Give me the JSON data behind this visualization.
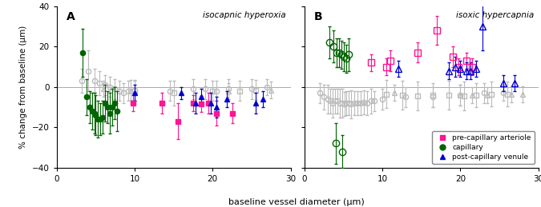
{
  "title_A": "isocapnic hyperoxia",
  "title_B": "isoxic hypercapnia",
  "xlabel": "baseline vessel diameter (μm)",
  "ylabel": "% change from baseline (μm)",
  "label_A": "A",
  "label_B": "B",
  "ylim": [
    -40,
    40
  ],
  "xlim": [
    0,
    30
  ],
  "yticks": [
    -40,
    -20,
    0,
    20,
    40
  ],
  "xticks": [
    0,
    10,
    20,
    30
  ],
  "colors": {
    "arteriole": "#FF1493",
    "capillary": "#006400",
    "venule": "#0000CD",
    "ghost": "#BBBBBB"
  },
  "A_ghost_circles": {
    "x": [
      3.2,
      4.0,
      4.8,
      5.5,
      6.2,
      6.8,
      7.4,
      8.0,
      8.6,
      9.2,
      10.0,
      14.5,
      17.5,
      19.0,
      20.5,
      22.0,
      25.0,
      27.0
    ],
    "y": [
      3.0,
      8.0,
      3.0,
      2.0,
      1.0,
      0.0,
      -1.0,
      -2.0,
      -3.0,
      -2.0,
      -1.5,
      -2.0,
      -1.0,
      -1.0,
      -2.0,
      -1.0,
      -1.0,
      0.0
    ],
    "yerr": [
      6,
      10,
      6,
      6,
      5,
      5,
      5,
      5,
      5,
      5,
      5,
      5,
      5,
      5,
      5,
      5,
      5,
      4
    ]
  },
  "A_ghost_triangles": {
    "x": [
      6.0,
      9.5,
      22.0,
      27.5
    ],
    "y": [
      -1.0,
      -1.5,
      -2.0,
      -1.5
    ],
    "yerr": [
      4,
      5,
      4,
      4
    ]
  },
  "A_ghost_squares": {
    "x": [
      10.0,
      15.0,
      20.0,
      23.5,
      25.5
    ],
    "y": [
      -2.0,
      -3.0,
      -2.0,
      -2.0,
      -1.5
    ],
    "yerr": [
      5,
      6,
      5,
      5,
      5
    ]
  },
  "A_cap": {
    "x": [
      3.3,
      3.8,
      4.2,
      4.5,
      4.8,
      5.0,
      5.3,
      5.6,
      5.9,
      6.2,
      6.5,
      6.8,
      7.1,
      7.4,
      7.7
    ],
    "y": [
      17.0,
      -5.0,
      -10.0,
      -12.0,
      -13.0,
      -14.0,
      -16.0,
      -16.0,
      -15.0,
      -8.0,
      -10.0,
      -13.0,
      -10.0,
      -8.0,
      -12.0
    ],
    "yerr": [
      12,
      9,
      8,
      9,
      10,
      10,
      9,
      8,
      8,
      9,
      8,
      10,
      9,
      8,
      10
    ]
  },
  "A_art": {
    "x": [
      9.8,
      13.5,
      15.5,
      17.5,
      18.5,
      19.5,
      20.5,
      22.5
    ],
    "y": [
      -8.0,
      -8.0,
      -17.0,
      -8.0,
      -8.5,
      -8.0,
      -13.0,
      -13.0
    ],
    "yerr": [
      4,
      5,
      9,
      4,
      4,
      5,
      6,
      5
    ]
  },
  "A_ven": {
    "x": [
      10.0,
      16.0,
      17.8,
      18.5,
      19.8,
      20.5,
      21.8,
      25.5,
      26.5
    ],
    "y": [
      -3.0,
      -3.0,
      -8.0,
      -5.0,
      -8.0,
      -10.0,
      -6.0,
      -8.0,
      -6.0
    ],
    "yerr": [
      4,
      3,
      5,
      4,
      5,
      5,
      4,
      5,
      4
    ]
  },
  "B_ghost_circles": {
    "x": [
      2.0,
      2.5,
      3.0,
      3.3,
      3.6,
      3.9,
      4.2,
      4.5,
      4.8,
      5.1,
      5.4,
      5.7,
      6.0,
      6.4,
      6.8,
      7.2,
      7.6,
      8.0,
      8.5,
      9.0,
      10.0,
      13.0,
      16.5,
      20.0,
      23.0,
      25.5
    ],
    "y": [
      -3.0,
      -5.0,
      -6.0,
      -7.0,
      -8.0,
      -7.0,
      -7.0,
      -8.0,
      -8.0,
      -8.5,
      -8.0,
      -8.0,
      -8.5,
      -8.0,
      -8.0,
      -8.0,
      -7.5,
      -8.0,
      -7.0,
      -7.0,
      -6.0,
      -5.0,
      -5.0,
      -4.0,
      -3.0,
      -3.0
    ],
    "yerr": [
      5,
      6,
      7,
      6,
      7,
      6,
      6,
      7,
      7,
      6,
      6,
      6,
      7,
      6,
      6,
      6,
      6,
      6,
      6,
      5,
      5,
      5,
      5,
      5,
      5,
      4
    ]
  },
  "B_ghost_triangles": {
    "x": [
      11.5,
      20.0,
      21.5,
      23.5,
      26.5,
      28.0
    ],
    "y": [
      -3.0,
      -4.0,
      -4.0,
      -4.0,
      -3.5,
      -3.5
    ],
    "yerr": [
      4,
      5,
      4,
      4,
      4,
      4
    ]
  },
  "B_ghost_squares": {
    "x": [
      10.5,
      12.5,
      14.5,
      16.5,
      18.5,
      20.5,
      22.0,
      24.0,
      26.0
    ],
    "y": [
      -3.5,
      -4.0,
      -4.5,
      -4.0,
      -4.0,
      -4.5,
      -4.0,
      -3.5,
      -3.5
    ],
    "yerr": [
      7,
      7,
      7,
      6,
      7,
      7,
      6,
      6,
      6
    ]
  },
  "B_cap": {
    "x": [
      3.2,
      3.7,
      4.1,
      4.4,
      4.7,
      5.0,
      5.3,
      5.7,
      4.0,
      4.8
    ],
    "y": [
      22.0,
      20.0,
      17.0,
      17.0,
      16.0,
      15.0,
      14.0,
      16.0,
      -28.0,
      -32.0
    ],
    "yerr": [
      8,
      8,
      7,
      7,
      7,
      7,
      7,
      8,
      10,
      8
    ]
  },
  "B_art": {
    "x": [
      8.5,
      10.5,
      11.0,
      14.5,
      17.0,
      19.0,
      19.8,
      20.8,
      21.5
    ],
    "y": [
      12.0,
      10.0,
      13.0,
      17.0,
      28.0,
      15.0,
      10.0,
      13.0,
      10.0
    ],
    "yerr": [
      4,
      4,
      5,
      5,
      7,
      5,
      4,
      4,
      4
    ]
  },
  "B_ven": {
    "x": [
      12.0,
      18.5,
      19.3,
      20.0,
      20.8,
      21.3,
      22.0,
      22.8,
      25.5,
      27.0
    ],
    "y": [
      9.0,
      8.0,
      10.0,
      9.0,
      8.0,
      8.0,
      9.0,
      30.0,
      2.0,
      2.0
    ],
    "yerr": [
      4,
      4,
      5,
      4,
      4,
      4,
      4,
      12,
      4,
      4
    ]
  },
  "legend_labels": [
    "pre-capillary arteriole",
    "capillary",
    "post-capillary venule"
  ],
  "markersize": 4.5,
  "elinewidth": 0.8,
  "capsize": 1.5
}
